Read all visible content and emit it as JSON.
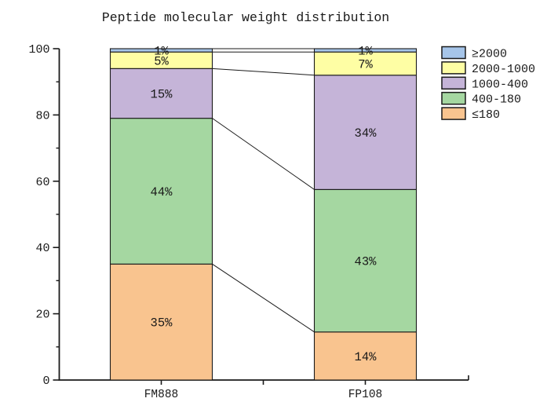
{
  "chart_data": {
    "type": "bar",
    "stacked": true,
    "title": "Peptide molecular weight distribution",
    "categories": [
      "FM888",
      "FP108"
    ],
    "series": [
      {
        "name": "≤180",
        "color": "#F9C48F",
        "values": [
          35,
          14.5
        ],
        "labels": [
          "35%",
          "14%"
        ]
      },
      {
        "name": "400-180",
        "color": "#A5D7A1",
        "values": [
          44,
          43
        ],
        "labels": [
          "44%",
          "43%"
        ]
      },
      {
        "name": "1000-400",
        "color": "#C5B4D8",
        "values": [
          15,
          34.5
        ],
        "labels": [
          "15%",
          "34%"
        ]
      },
      {
        "name": "2000-1000",
        "color": "#FEFEA4",
        "values": [
          5,
          7
        ],
        "labels": [
          "5%",
          "7%"
        ]
      },
      {
        "name": "≥2000",
        "color": "#A6C5E9",
        "values": [
          1,
          1
        ],
        "labels": [
          "1%",
          "1%"
        ]
      }
    ],
    "legend": {
      "position": "top-right",
      "entries": [
        "≥2000",
        "2000-1000",
        "1000-400",
        "400-180",
        "≤180"
      ]
    },
    "ylim": [
      0,
      100
    ],
    "y_major_ticks": [
      0,
      20,
      40,
      60,
      80,
      100
    ],
    "y_minor_ticks": [
      10,
      30,
      50,
      70,
      90
    ],
    "grid": false,
    "connectors": true,
    "axis_color": "#1a1a1a",
    "label_color": "#2e2e2e"
  }
}
